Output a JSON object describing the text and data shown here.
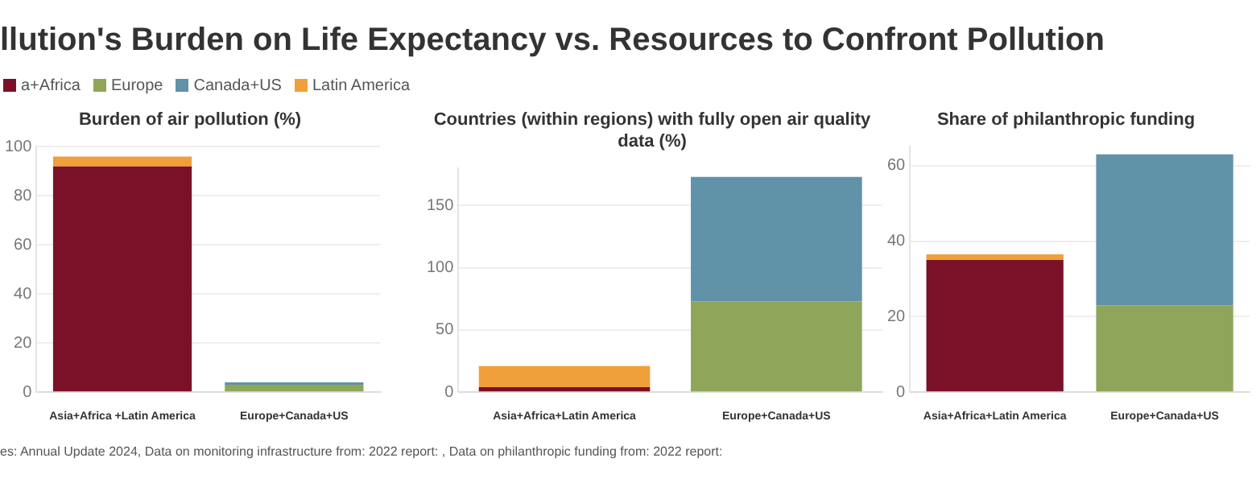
{
  "chart_data": [
    {
      "type": "other",
      "title": "llution's Burden on Life Expectancy vs. Resources to Confront Pollution",
      "annotations": [
        "es: Annual Update 2024, Data on monitoring infrastructure from: 2022 report: , Data on philanthropic funding from: 2022 report:"
      ]
    },
    {
      "type": "bar",
      "title": "Burden of air pollution (%)",
      "categories": [
        "Asia+Africa +Latin America",
        "Europe+Canada+US"
      ],
      "stacked": true,
      "legend": "top left",
      "grid": "y",
      "ylim": [
        0,
        100
      ],
      "yticks": [
        0,
        20,
        40,
        60,
        80,
        100
      ],
      "series": [
        {
          "name": "a+Africa",
          "color": "#7b1128",
          "values": [
            92,
            null
          ]
        },
        {
          "name": "Europe",
          "color": "#8fa65a",
          "values": [
            null,
            3
          ]
        },
        {
          "name": "Canada+US",
          "color": "#6092a8",
          "values": [
            null,
            1
          ]
        },
        {
          "name": "Latin America",
          "color": "#f0a03a",
          "values": [
            4,
            null
          ]
        }
      ]
    },
    {
      "type": "bar",
      "title": "Countries (within regions) with fully open air quality data (%)",
      "categories": [
        "Asia+Africa+Latin America",
        "Europe+Canada+US"
      ],
      "stacked": true,
      "grid": "y",
      "ylim": [
        0,
        180
      ],
      "yticks": [
        0,
        50,
        100,
        150
      ],
      "series": [
        {
          "color": "#7b1128",
          "values": [
            4,
            null
          ]
        },
        {
          "color": "#8fa65a",
          "values": [
            null,
            73
          ]
        },
        {
          "color": "#6092a8",
          "values": [
            null,
            100
          ]
        },
        {
          "color": "#f0a03a",
          "values": [
            17,
            null
          ]
        }
      ]
    },
    {
      "type": "bar",
      "title": "Share of philanthropic funding",
      "categories": [
        "Asia+Africa+Latin America",
        "Europe+Canada+US"
      ],
      "stacked": true,
      "grid": "y",
      "ylim": [
        0,
        65
      ],
      "yticks": [
        0,
        20,
        40,
        60
      ],
      "series": [
        {
          "color": "#7b1128",
          "values": [
            35,
            null
          ]
        },
        {
          "color": "#8fa65a",
          "values": [
            null,
            23
          ]
        },
        {
          "color": "#6092a8",
          "values": [
            null,
            40
          ]
        },
        {
          "color": "#f0a03a",
          "values": [
            1.5,
            null
          ]
        }
      ]
    }
  ]
}
